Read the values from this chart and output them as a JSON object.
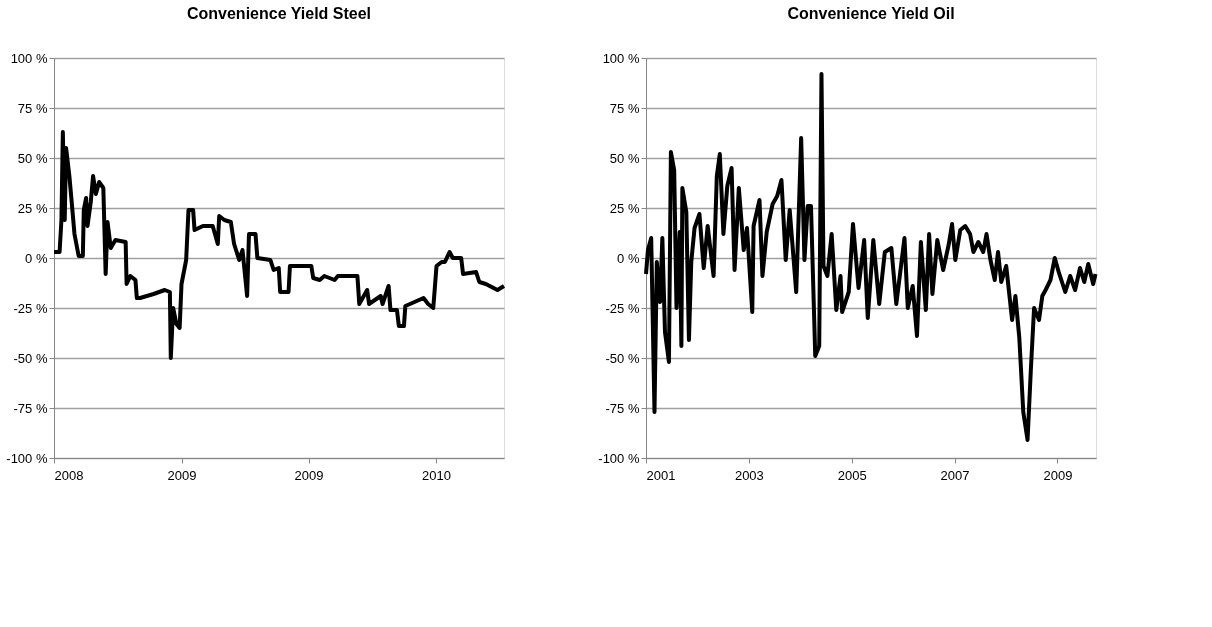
{
  "chart_data": [
    {
      "type": "line",
      "title": "Convenience Yield Steel",
      "grid": "y",
      "legend": false,
      "marker": "none",
      "line_style": "solid",
      "xlim": [
        "2008-05-27",
        "2011-01-19"
      ],
      "xticks": [
        {
          "value": "2008-05-27",
          "label": "2008"
        },
        {
          "value": "2009-02-25",
          "label": "2009"
        },
        {
          "value": "2009-11-25",
          "label": "2009"
        },
        {
          "value": "2010-08-26",
          "label": "2010"
        }
      ],
      "ylim": [
        -100,
        100
      ],
      "yticks": [
        {
          "value": -100,
          "label": "-100 %"
        },
        {
          "value": -75,
          "label": "-75 %"
        },
        {
          "value": -50,
          "label": "-50 %"
        },
        {
          "value": -25,
          "label": "-25 %"
        },
        {
          "value": 0,
          "label": "0 %"
        },
        {
          "value": 25,
          "label": "25 %"
        },
        {
          "value": 50,
          "label": "50 %"
        },
        {
          "value": 75,
          "label": "75 %"
        },
        {
          "value": 100,
          "label": "100 %"
        }
      ],
      "series": [
        {
          "color": "#000000",
          "x": [
            "2008-05-27",
            "2008-06-08",
            "2008-06-12",
            "2008-06-15",
            "2008-06-19",
            "2008-06-22",
            "2008-06-29",
            "2008-07-04",
            "2008-07-10",
            "2008-07-19",
            "2008-07-28",
            "2008-07-30",
            "2008-08-04",
            "2008-08-07",
            "2008-08-14",
            "2008-08-19",
            "2008-08-25",
            "2008-09-01",
            "2008-09-10",
            "2008-09-15",
            "2008-09-19",
            "2008-09-26",
            "2008-10-06",
            "2008-10-28",
            "2008-10-30",
            "2008-11-07",
            "2008-11-18",
            "2008-11-21",
            "2008-11-28",
            "2008-12-27",
            "2009-01-20",
            "2009-01-31",
            "2009-02-02",
            "2009-02-07",
            "2009-02-14",
            "2009-02-21",
            "2009-02-25",
            "2009-03-07",
            "2009-03-12",
            "2009-03-22",
            "2009-03-25",
            "2009-04-12",
            "2009-05-03",
            "2009-05-14",
            "2009-05-17",
            "2009-05-28",
            "2009-06-11",
            "2009-06-18",
            "2009-06-29",
            "2009-07-06",
            "2009-07-16",
            "2009-07-20",
            "2009-08-03",
            "2009-08-07",
            "2009-09-04",
            "2009-09-11",
            "2009-09-22",
            "2009-09-25",
            "2009-10-13",
            "2009-10-16",
            "2009-12-01",
            "2009-12-05",
            "2009-12-19",
            "2009-12-29",
            "2010-01-20",
            "2010-01-27",
            "2010-03-10",
            "2010-03-14",
            "2010-03-31",
            "2010-04-04",
            "2010-04-29",
            "2010-05-03",
            "2010-05-16",
            "2010-05-20",
            "2010-06-03",
            "2010-06-07",
            "2010-06-18",
            "2010-06-21",
            "2010-07-01",
            "2010-07-30",
            "2010-08-09",
            "2010-08-20",
            "2010-08-22",
            "2010-08-27",
            "2010-09-07",
            "2010-09-14",
            "2010-09-24",
            "2010-10-01",
            "2010-10-19",
            "2010-10-23",
            "2010-11-20",
            "2010-11-27",
            "2010-12-11",
            "2011-01-05",
            "2011-01-19"
          ],
          "values": [
            3,
            3,
            19,
            63,
            19,
            55,
            41,
            28,
            12,
            1,
            1,
            24,
            30,
            16,
            28,
            41,
            32,
            38,
            35,
            -8,
            18,
            5,
            9,
            8,
            -13,
            -9,
            -11,
            -20,
            -20,
            -18,
            -16,
            -17,
            -50,
            -25,
            -33,
            -35,
            -13,
            -1,
            24,
            24,
            14,
            16,
            16,
            7,
            21,
            19,
            18,
            7,
            -1,
            4,
            -19,
            12,
            12,
            0,
            -1,
            -6,
            -5,
            -17,
            -17,
            -4,
            -4,
            -10,
            -11,
            -9,
            -11,
            -9,
            -9,
            -23,
            -16,
            -23,
            -19,
            -23,
            -14,
            -26,
            -26,
            -34,
            -34,
            -24,
            -23,
            -20,
            -23,
            -25,
            -19,
            -4,
            -2,
            -2,
            3,
            0,
            0,
            -8,
            -7,
            -12,
            -13,
            -16,
            -14
          ]
        }
      ]
    },
    {
      "type": "line",
      "title": "Convenience Yield Oil",
      "grid": "y",
      "legend": false,
      "marker": "none",
      "line_style": "solid",
      "xlim": [
        2001,
        2009.75
      ],
      "xticks": [
        2001,
        2003,
        2005,
        2007,
        2009
      ],
      "ylim": [
        -100,
        100
      ],
      "yticks": [
        {
          "value": -100,
          "label": "-100 %"
        },
        {
          "value": -75,
          "label": "-75 %"
        },
        {
          "value": -50,
          "label": "-50 %"
        },
        {
          "value": -25,
          "label": "-25 %"
        },
        {
          "value": 0,
          "label": "0 %"
        },
        {
          "value": 25,
          "label": "25 %"
        },
        {
          "value": 50,
          "label": "50 %"
        },
        {
          "value": 75,
          "label": "75 %"
        },
        {
          "value": 100,
          "label": "100 %"
        }
      ],
      "series": [
        {
          "color": "#000000",
          "x": [
            2001.0,
            2001.038,
            2001.101,
            2001.165,
            2001.21,
            2001.274,
            2001.318,
            2001.369,
            2001.446,
            2001.484,
            2001.548,
            2001.593,
            2001.656,
            2001.688,
            2001.707,
            2001.784,
            2001.835,
            2001.88,
            2001.944,
            2002.039,
            2002.122,
            2002.199,
            2002.314,
            2002.377,
            2002.435,
            2002.505,
            2002.581,
            2002.664,
            2002.722,
            2002.805,
            2002.9,
            2002.964,
            2003.066,
            2003.092,
            2003.207,
            2003.264,
            2003.347,
            2003.462,
            2003.551,
            2003.634,
            2003.717,
            2003.794,
            2003.921,
            2004.017,
            2004.081,
            2004.144,
            2004.208,
            2004.291,
            2004.368,
            2004.412,
            2004.451,
            2004.527,
            2004.61,
            2004.7,
            2004.782,
            2004.814,
            2004.942,
            2005.025,
            2005.133,
            2005.242,
            2005.312,
            2005.42,
            2005.535,
            2005.644,
            2005.771,
            2005.867,
            2006.026,
            2006.09,
            2006.186,
            2006.269,
            2006.345,
            2006.441,
            2006.505,
            2006.569,
            2006.664,
            2006.779,
            2006.888,
            2006.951,
            2007.015,
            2007.111,
            2007.207,
            2007.302,
            2007.366,
            2007.462,
            2007.558,
            2007.621,
            2007.698,
            2007.781,
            2007.845,
            2007.908,
            2008.004,
            2008.119,
            2008.183,
            2008.259,
            2008.336,
            2008.419,
            2008.483,
            2008.546,
            2008.642,
            2008.706,
            2008.77,
            2008.865,
            2008.948,
            2009.025,
            2009.152,
            2009.248,
            2009.344,
            2009.439,
            2009.522,
            2009.599,
            2009.695,
            2009.74
          ],
          "values": [
            -8,
            4,
            10,
            -77,
            -2,
            -22,
            10,
            -37,
            -52,
            53,
            44,
            -25,
            13,
            -44,
            35,
            23,
            -41,
            -2,
            15,
            22,
            -5,
            16,
            -9,
            41,
            52,
            12,
            36,
            45,
            -6,
            35,
            4,
            15,
            -27,
            16,
            29,
            -9,
            13,
            27,
            31,
            39,
            -1,
            24,
            -17,
            60,
            -1,
            26,
            26,
            -49,
            -44,
            92,
            -4,
            -9,
            12,
            -26,
            -9,
            -27,
            -17,
            17,
            -15,
            9,
            -30,
            9,
            -23,
            3,
            5,
            -23,
            10,
            -25,
            -14,
            -39,
            8,
            -26,
            12,
            -18,
            9,
            -6,
            7,
            17,
            -1,
            14,
            16,
            12,
            3,
            8,
            3,
            12,
            -1,
            -11,
            3,
            -12,
            -4,
            -31,
            -19,
            -40,
            -77,
            -91,
            -56,
            -25,
            -31,
            -19,
            -16,
            -11,
            0,
            -7,
            -17,
            -9,
            -16,
            -5,
            -12,
            -3,
            -13,
            -8
          ]
        }
      ]
    }
  ]
}
